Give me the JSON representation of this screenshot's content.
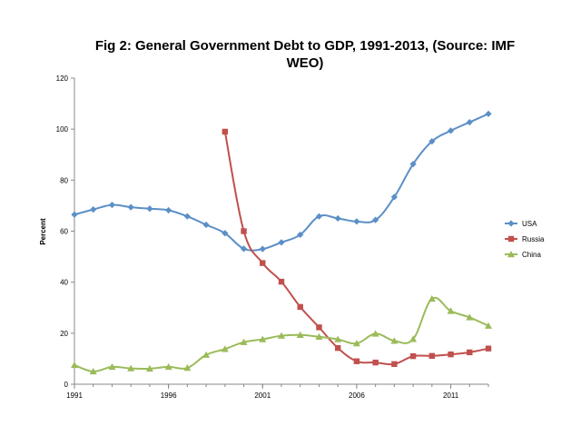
{
  "chart_data": {
    "type": "line",
    "title_line1": "Fig 2: General Government Debt to GDP, 1991-2013, (Source: IMF",
    "title_line2": "WEO)",
    "xlabel": "",
    "ylabel": "Percent",
    "xlim": [
      1991,
      2013
    ],
    "ylim": [
      0,
      120
    ],
    "x_ticks": [
      "1991",
      "1996",
      "2001",
      "2006",
      "2011"
    ],
    "y_ticks": [
      "0",
      "20",
      "40",
      "60",
      "80",
      "100",
      "120"
    ],
    "grid": false,
    "legend_position": "right",
    "series": [
      {
        "name": "USA",
        "color": "#5b8fc7",
        "marker": "diamond",
        "x": [
          1991,
          1992,
          1993,
          1994,
          1995,
          1996,
          1997,
          1998,
          1999,
          2000,
          2001,
          2002,
          2003,
          2004,
          2005,
          2006,
          2007,
          2008,
          2009,
          2010,
          2011,
          2012,
          2013
        ],
        "values": [
          66.5,
          68.5,
          70.3,
          69.4,
          68.8,
          68.2,
          65.8,
          62.5,
          59.2,
          53.1,
          53.0,
          55.6,
          58.6,
          65.8,
          65.0,
          63.8,
          64.4,
          73.4,
          86.3,
          95.2,
          99.4,
          102.7,
          106.0
        ]
      },
      {
        "name": "Russia",
        "color": "#c0504d",
        "marker": "square",
        "x": [
          1999,
          2000,
          2001,
          2002,
          2003,
          2004,
          2005,
          2006,
          2007,
          2008,
          2009,
          2010,
          2011,
          2012,
          2013
        ],
        "values": [
          99.0,
          60.0,
          47.5,
          40.2,
          30.3,
          22.3,
          14.2,
          9.0,
          8.5,
          7.9,
          11.0,
          11.1,
          11.7,
          12.5,
          14.0
        ]
      },
      {
        "name": "China",
        "color": "#9bbb59",
        "marker": "triangle",
        "x": [
          1991,
          1992,
          1993,
          1994,
          1995,
          1996,
          1997,
          1998,
          1999,
          2000,
          2001,
          2002,
          2003,
          2004,
          2005,
          2006,
          2007,
          2008,
          2009,
          2010,
          2011,
          2012,
          2013
        ],
        "values": [
          7.5,
          5.0,
          6.8,
          6.2,
          6.1,
          6.8,
          6.4,
          11.5,
          13.8,
          16.5,
          17.6,
          19.0,
          19.3,
          18.6,
          17.6,
          16.0,
          19.8,
          17.0,
          17.7,
          33.5,
          28.7,
          26.2,
          22.9
        ]
      }
    ]
  }
}
